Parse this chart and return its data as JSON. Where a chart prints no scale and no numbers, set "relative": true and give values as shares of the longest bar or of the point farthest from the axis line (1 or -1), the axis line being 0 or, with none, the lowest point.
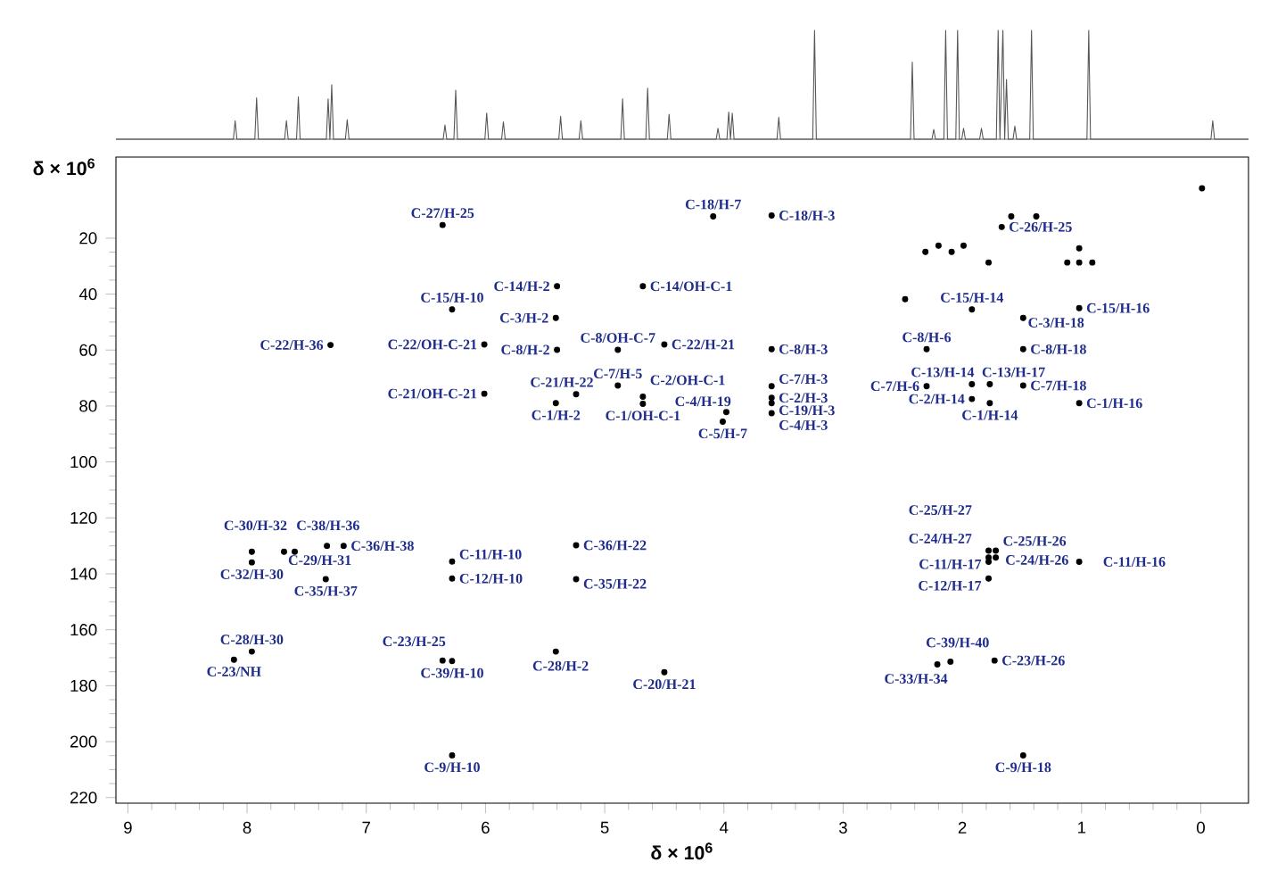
{
  "chart_data": [
    {
      "type": "line",
      "relative": true,
      "tick_labels": false,
      "xlim": [
        9.1,
        -0.4
      ],
      "series": [
        {
          "color": "#555555",
          "x": [
            9.1,
            8.115,
            8.1,
            8.085,
            7.935,
            7.92,
            7.905,
            7.685,
            7.67,
            7.655,
            7.585,
            7.57,
            7.555,
            7.335,
            7.32,
            7.305,
            7.29,
            7.275,
            7.175,
            7.16,
            7.145,
            6.355,
            6.34,
            6.325,
            6.265,
            6.25,
            6.235,
            6.005,
            5.99,
            5.975,
            5.865,
            5.85,
            5.835,
            5.385,
            5.37,
            5.355,
            5.215,
            5.2,
            5.185,
            4.865,
            4.85,
            4.835,
            4.655,
            4.64,
            4.625,
            4.475,
            4.46,
            4.445,
            4.065,
            4.05,
            4.035,
            3.975,
            3.96,
            3.945,
            3.93,
            3.915,
            3.555,
            3.54,
            3.525,
            3.255,
            3.24,
            3.225,
            2.435,
            2.42,
            2.405,
            2.255,
            2.24,
            2.225,
            2.155,
            2.14,
            2.125,
            2.055,
            2.04,
            2.025,
            2.005,
            1.99,
            1.975,
            1.855,
            1.84,
            1.825,
            1.715,
            1.7,
            1.685,
            1.66,
            1.645,
            1.63,
            1.615,
            1.575,
            1.56,
            1.545,
            1.435,
            1.42,
            1.405,
            0.955,
            0.94,
            0.925,
            -0.085,
            -0.1,
            -0.115,
            -0.4
          ],
          "values": [
            0,
            0,
            0.17,
            0,
            0,
            0.38,
            0,
            0,
            0.17,
            0,
            0,
            0.39,
            0,
            0,
            0.37,
            0,
            0.5,
            0,
            0,
            0.18,
            0,
            0,
            0.13,
            0,
            0,
            0.45,
            0,
            0,
            0.24,
            0,
            0,
            0.16,
            0,
            0,
            0.21,
            0,
            0,
            0.17,
            0,
            0,
            0.37,
            0,
            0,
            0.47,
            0,
            0,
            0.23,
            0,
            0,
            0.1,
            0,
            0,
            0.25,
            0,
            0.24,
            0,
            0,
            0.2,
            0,
            0,
            1.0,
            0,
            0,
            0.71,
            0,
            0,
            0.09,
            0,
            0,
            1.0,
            0,
            0,
            1.0,
            0,
            0,
            0.1,
            0,
            0,
            0.1,
            0,
            0,
            1.0,
            0,
            1.0,
            0,
            0.55,
            0,
            0,
            0.12,
            0,
            0,
            1.0,
            0,
            0,
            1.0,
            0,
            0,
            0.17,
            0,
            0
          ]
        }
      ]
    },
    {
      "type": "scatter",
      "xlabel": "δ × 10$^{6}$",
      "ylabel": "δ × 10$^{6}$",
      "xlim": [
        9.1,
        -0.4
      ],
      "ylim": [
        222,
        -9
      ],
      "xticks": [
        0,
        1,
        2,
        3,
        4,
        5,
        6,
        7,
        8,
        9
      ],
      "yticks": [
        20,
        40,
        60,
        80,
        100,
        120,
        140,
        160,
        180,
        200,
        220
      ],
      "marker": "circle",
      "series": [
        {
          "color": "#000000",
          "x": [
            6.36,
            6.28,
            5.4,
            5.41,
            7.3,
            6.01,
            5.4,
            4.89,
            4.68,
            4.5,
            6.01,
            5.24,
            5.41,
            4.89,
            4.68,
            4.68,
            4.09,
            3.6,
            3.6,
            3.6,
            3.6,
            3.6,
            3.6,
            3.98,
            4.01,
            1.67,
            1.92,
            1.02,
            1.49,
            2.3,
            1.49,
            2.3,
            1.92,
            1.77,
            1.49,
            1.92,
            1.77,
            1.02,
            7.69,
            7.6,
            7.33,
            7.19,
            7.96,
            7.34,
            6.28,
            6.28,
            5.24,
            5.24,
            7.96,
            8.11,
            6.36,
            6.28,
            5.41,
            4.5,
            6.28,
            1.78,
            1.78,
            1.72,
            1.72,
            1.78,
            1.78,
            1.02,
            2.1,
            2.21,
            1.73,
            1.49,
            7.96,
            1.59,
            1.38,
            2.31,
            2.2,
            2.09,
            1.99,
            1.78,
            1.12,
            1.02,
            1.02,
            0.91,
            -0.01,
            2.48
          ],
          "values": [
            15.3,
            45.5,
            37.2,
            48.5,
            58.2,
            58.0,
            59.9,
            59.9,
            37.2,
            58.0,
            75.6,
            75.8,
            79.0,
            72.7,
            76.7,
            79.2,
            12.2,
            11.9,
            59.7,
            72.9,
            77.1,
            79.0,
            82.6,
            82.2,
            85.6,
            16.0,
            45.5,
            45.0,
            48.5,
            59.7,
            59.7,
            72.9,
            72.2,
            72.2,
            72.7,
            77.5,
            79.0,
            79.0,
            132.1,
            132.1,
            130.0,
            130.0,
            135.9,
            141.9,
            135.6,
            141.7,
            129.8,
            141.9,
            167.8,
            170.7,
            171.0,
            171.2,
            167.8,
            175.2,
            204.9,
            131.7,
            134.2,
            131.7,
            134.2,
            135.7,
            141.7,
            135.7,
            171.4,
            172.4,
            171.0,
            204.9,
            132.1,
            12.2,
            12.2,
            24.9,
            22.7,
            24.9,
            22.7,
            28.7,
            28.7,
            23.6,
            28.7,
            28.7,
            2.2,
            41.8
          ]
        }
      ],
      "annotations": [
        {
          "text": "C-27/H-25",
          "x": 6.36,
          "y": 15.3
        },
        {
          "text": "C-15/H-10",
          "x": 6.28,
          "y": 45.5
        },
        {
          "text": "C-14/H-2",
          "x": 5.4,
          "y": 37.2
        },
        {
          "text": "C-3/H-2",
          "x": 5.41,
          "y": 48.5
        },
        {
          "text": "C-22/H-36",
          "x": 7.3,
          "y": 58.2
        },
        {
          "text": "C-22/OH-C-21",
          "x": 6.01,
          "y": 58.0
        },
        {
          "text": "C-8/H-2",
          "x": 5.4,
          "y": 59.9
        },
        {
          "text": "C-8/OH-C-7",
          "x": 4.89,
          "y": 59.9
        },
        {
          "text": "C-14/OH-C-1",
          "x": 4.68,
          "y": 37.2
        },
        {
          "text": "C-22/H-21",
          "x": 4.5,
          "y": 58.0
        },
        {
          "text": "C-21/OH-C-21",
          "x": 6.01,
          "y": 75.6
        },
        {
          "text": "C-21/H-22",
          "x": 5.24,
          "y": 75.8
        },
        {
          "text": "C-1/H-2",
          "x": 5.41,
          "y": 79.0
        },
        {
          "text": "C-7/H-5",
          "x": 4.89,
          "y": 72.7
        },
        {
          "text": "C-2/OH-C-1",
          "x": 4.68,
          "y": 76.7
        },
        {
          "text": "C-1/OH-C-1",
          "x": 4.68,
          "y": 79.2
        },
        {
          "text": "C-18/H-7",
          "x": 4.09,
          "y": 12.2
        },
        {
          "text": "C-18/H-3",
          "x": 3.6,
          "y": 11.9
        },
        {
          "text": "C-8/H-3",
          "x": 3.6,
          "y": 59.7
        },
        {
          "text": "C-7/H-3",
          "x": 3.6,
          "y": 72.9
        },
        {
          "text": "C-2/H-3",
          "x": 3.6,
          "y": 77.1
        },
        {
          "text": "C-19/H-3",
          "x": 3.6,
          "y": 79.0
        },
        {
          "text": "C-4/H-3",
          "x": 3.6,
          "y": 82.6
        },
        {
          "text": "C-4/H-19",
          "x": 3.98,
          "y": 82.2
        },
        {
          "text": "C-5/H-7",
          "x": 4.01,
          "y": 85.6
        },
        {
          "text": "C-26/H-25",
          "x": 1.67,
          "y": 16.0
        },
        {
          "text": "C-15/H-14",
          "x": 1.92,
          "y": 45.5
        },
        {
          "text": "C-15/H-16",
          "x": 1.02,
          "y": 45.0
        },
        {
          "text": "C-3/H-18",
          "x": 1.49,
          "y": 48.5
        },
        {
          "text": "C-8/H-6",
          "x": 2.3,
          "y": 59.7
        },
        {
          "text": "C-8/H-18",
          "x": 1.49,
          "y": 59.7
        },
        {
          "text": "C-7/H-6",
          "x": 2.3,
          "y": 72.9
        },
        {
          "text": "C-13/H-14",
          "x": 1.92,
          "y": 72.2
        },
        {
          "text": "C-13/H-17",
          "x": 1.77,
          "y": 72.2
        },
        {
          "text": "C-7/H-18",
          "x": 1.49,
          "y": 72.7
        },
        {
          "text": "C-2/H-14",
          "x": 1.92,
          "y": 77.5
        },
        {
          "text": "C-1/H-14",
          "x": 1.77,
          "y": 79.0
        },
        {
          "text": "C-1/H-16",
          "x": 1.02,
          "y": 79.0
        },
        {
          "text": "C-30/H-32",
          "x": 7.69,
          "y": 132.1
        },
        {
          "text": "C-38/H-36",
          "x": 7.6,
          "y": 132.1
        },
        {
          "text": "C-29/H-31",
          "x": 7.33,
          "y": 130.0
        },
        {
          "text": "C-36/H-38",
          "x": 7.19,
          "y": 130.0
        },
        {
          "text": "C-32/H-30",
          "x": 7.96,
          "y": 135.9
        },
        {
          "text": "C-35/H-37",
          "x": 7.34,
          "y": 141.9
        },
        {
          "text": "C-11/H-10",
          "x": 6.28,
          "y": 135.6
        },
        {
          "text": "C-12/H-10",
          "x": 6.28,
          "y": 141.7
        },
        {
          "text": "C-36/H-22",
          "x": 5.24,
          "y": 129.8
        },
        {
          "text": "C-35/H-22",
          "x": 5.24,
          "y": 141.9
        },
        {
          "text": "C-28/H-30",
          "x": 7.96,
          "y": 167.8
        },
        {
          "text": "C-23/NH",
          "x": 8.11,
          "y": 170.7
        },
        {
          "text": "C-23/H-25",
          "x": 6.36,
          "y": 171.0
        },
        {
          "text": "C-39/H-10",
          "x": 6.28,
          "y": 171.2
        },
        {
          "text": "C-28/H-2",
          "x": 5.41,
          "y": 167.8
        },
        {
          "text": "C-20/H-21",
          "x": 4.5,
          "y": 175.2
        },
        {
          "text": "C-9/H-10",
          "x": 6.28,
          "y": 204.9
        },
        {
          "text": "C-25/H-27",
          "x": 1.78,
          "y": 131.7
        },
        {
          "text": "C-24/H-27",
          "x": 1.78,
          "y": 134.2
        },
        {
          "text": "C-25/H-26",
          "x": 1.72,
          "y": 131.7
        },
        {
          "text": "C-24/H-26",
          "x": 1.72,
          "y": 134.2
        },
        {
          "text": "C-11/H-17",
          "x": 1.78,
          "y": 135.7
        },
        {
          "text": "C-12/H-17",
          "x": 1.78,
          "y": 141.7
        },
        {
          "text": "C-11/H-16",
          "x": 1.02,
          "y": 135.7
        },
        {
          "text": "C-39/H-40",
          "x": 2.1,
          "y": 171.4
        },
        {
          "text": "C-33/H-34",
          "x": 2.21,
          "y": 172.4
        },
        {
          "text": "C-23/H-26",
          "x": 1.73,
          "y": 171.0
        },
        {
          "text": "C-9/H-18",
          "x": 1.49,
          "y": 204.9
        }
      ]
    }
  ]
}
